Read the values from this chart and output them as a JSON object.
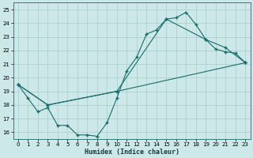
{
  "xlabel": "Humidex (Indice chaleur)",
  "xlim": [
    -0.5,
    23.5
  ],
  "ylim": [
    15.5,
    25.5
  ],
  "xticks": [
    0,
    1,
    2,
    3,
    4,
    5,
    6,
    7,
    8,
    9,
    10,
    11,
    12,
    13,
    14,
    15,
    16,
    17,
    18,
    19,
    20,
    21,
    22,
    23
  ],
  "yticks": [
    16,
    17,
    18,
    19,
    20,
    21,
    22,
    23,
    24,
    25
  ],
  "bg_color": "#cce8e8",
  "grid_color": "#aacccc",
  "line_color": "#1a6b6b",
  "line1_x": [
    0,
    1,
    2,
    3,
    4,
    5,
    6,
    7,
    8,
    9,
    10,
    11,
    12,
    13,
    14,
    15,
    16,
    17,
    18,
    19,
    20,
    21,
    22,
    23
  ],
  "line1_y": [
    19.5,
    18.5,
    17.5,
    17.8,
    16.5,
    16.5,
    15.8,
    15.8,
    15.7,
    16.7,
    18.5,
    20.5,
    21.5,
    23.2,
    23.5,
    24.3,
    24.4,
    24.8,
    23.9,
    22.8,
    22.1,
    21.9,
    21.8,
    21.1
  ],
  "line2_x": [
    0,
    3,
    10,
    23
  ],
  "line2_y": [
    19.5,
    18.0,
    19.0,
    21.1
  ],
  "line3_x": [
    0,
    3,
    10,
    15,
    19,
    21,
    23
  ],
  "line3_y": [
    19.5,
    18.0,
    19.0,
    24.3,
    22.8,
    22.2,
    21.1
  ]
}
